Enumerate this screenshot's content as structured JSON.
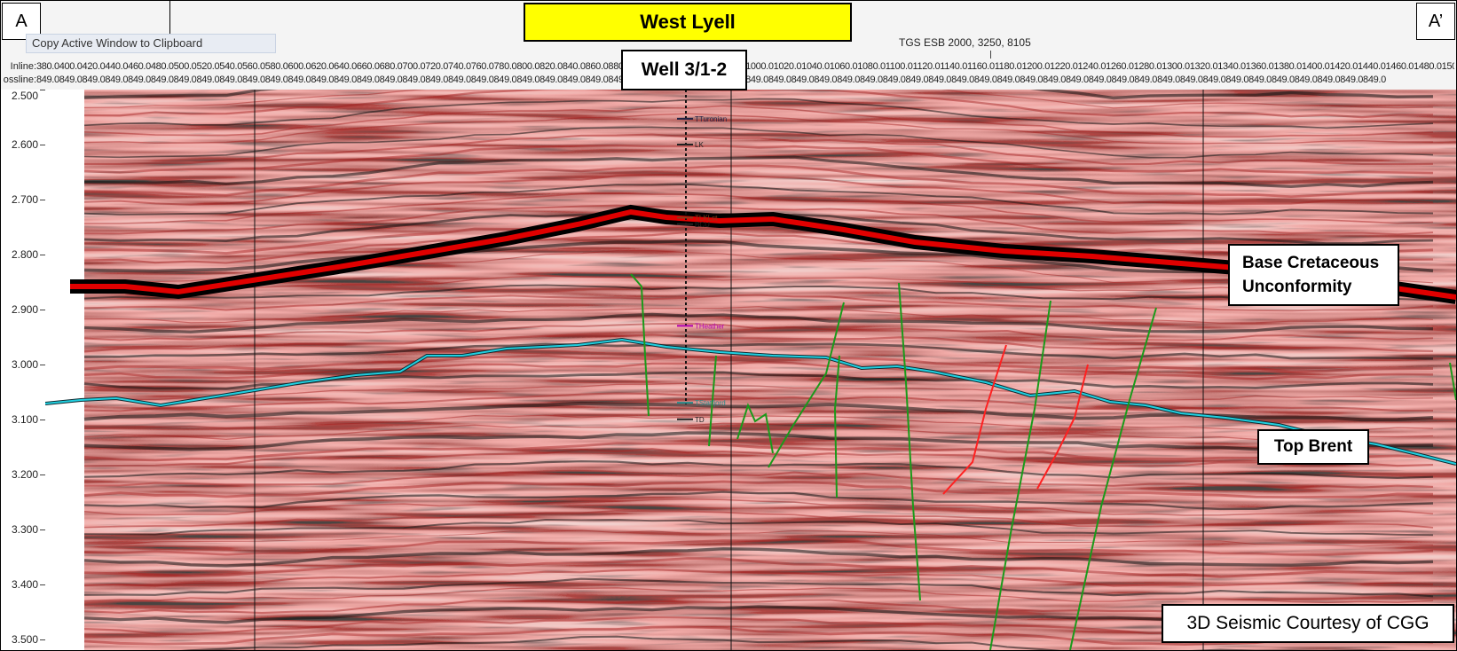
{
  "corners": {
    "left": "A",
    "right": "A’"
  },
  "title": "West Lyell",
  "menu": {
    "copy_label": "Copy Active Window to Clipboard"
  },
  "survey_label": "TGS ESB 2000, 3250, 8105",
  "header": {
    "inline_label": "Inline:",
    "xline_label": "ossline:",
    "inline_values": "380.0400.0420.0440.0460.0480.0500.0520.0540.0560.0580.0600.0620.0640.0660.0680.0700.0720.0740.0760.0780.0800.0820.0840.0860.0880.0900.0920.0940.0960.0980.01000.01020.01040.01060.01080.01100.01120.01140.01160.01180.01200.01220.01240.01260.01280.01300.01320.01340.01360.01380.01400.01420.01440.01460.01480.01500.01520.01540.01560.0",
    "xline_values": "849.0849.0849.0849.0849.0849.0849.0849.0849.0849.0849.0849.0849.0849.0849.0849.0849.0849.0849.0849.0849.0849.0849.0849.0849.0849.0849.0849.0849.0849.0849.0849.0849.0849.0849.0849.0849.0849.0849.0849.0849.0849.0849.0849.0849.0849.0849.0849.0849.0849.0849.0849.0849.0849.0849.0849.0849.0849.0849.0"
  },
  "time_axis": {
    "ticks": [
      "2.500",
      "2.600",
      "2.700",
      "2.800",
      "2.900",
      "3.000",
      "3.100",
      "3.200",
      "3.300",
      "3.400",
      "3.500"
    ],
    "range": [
      2.5,
      3.52
    ]
  },
  "well": {
    "name": "Well 3/1-2",
    "markers": [
      {
        "label": "TTuronian",
        "t": 2.553,
        "color": "#222244"
      },
      {
        "label": "LK",
        "t": 2.6,
        "color": "#222222"
      },
      {
        "label": "TLKLst",
        "t": 2.733,
        "color": "#8b3a1a"
      },
      {
        "label": "BCU",
        "t": 2.745,
        "color": "#222222"
      },
      {
        "label": "THeather",
        "t": 2.93,
        "color": "#b000b0"
      },
      {
        "label": "TStatfjord",
        "t": 3.07,
        "color": "#2a8a8a"
      },
      {
        "label": "TD",
        "t": 3.1,
        "color": "#222222"
      }
    ]
  },
  "callouts": {
    "bcu_line1": "Base Cretaceous",
    "bcu_line2": "Unconformity",
    "brent": "Top Brent",
    "credit": "3D Seismic Courtesy of CGG"
  },
  "colors": {
    "bcu_horizon": "#e00000",
    "brent_horizon": "#20d0e0",
    "faults_green": "#1a9a1a",
    "faults_red": "#ff2020",
    "title_bg": "#ffff00"
  }
}
